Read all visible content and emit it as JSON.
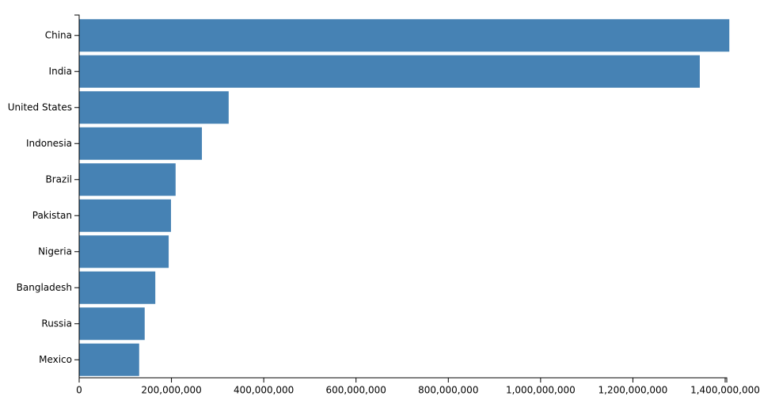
{
  "chart_data": {
    "type": "bar",
    "orientation": "horizontal",
    "categories": [
      "China",
      "India",
      "United States",
      "Indonesia",
      "Brazil",
      "Pakistan",
      "Nigeria",
      "Bangladesh",
      "Russia",
      "Mexico"
    ],
    "values": [
      1409000000,
      1345000000,
      324000000,
      266000000,
      209000000,
      199000000,
      194000000,
      165000000,
      142000000,
      130000000
    ],
    "color": "#4682b4",
    "xlim": [
      0,
      1400000000
    ],
    "xticks": [
      0,
      {
        "value": 200000000,
        "label": "200,000,000"
      },
      {
        "value": 400000000,
        "label": "400,000,000"
      },
      {
        "value": 600000000,
        "label": "600,000,000"
      },
      {
        "value": 800000000,
        "label": "800,000,000"
      },
      {
        "value": 1000000000,
        "label": "1,000,000,000"
      },
      {
        "value": 1200000000,
        "label": "1,200,000,000"
      },
      {
        "value": 1400000000,
        "label": "1,400,000,000"
      }
    ],
    "grid": false
  }
}
